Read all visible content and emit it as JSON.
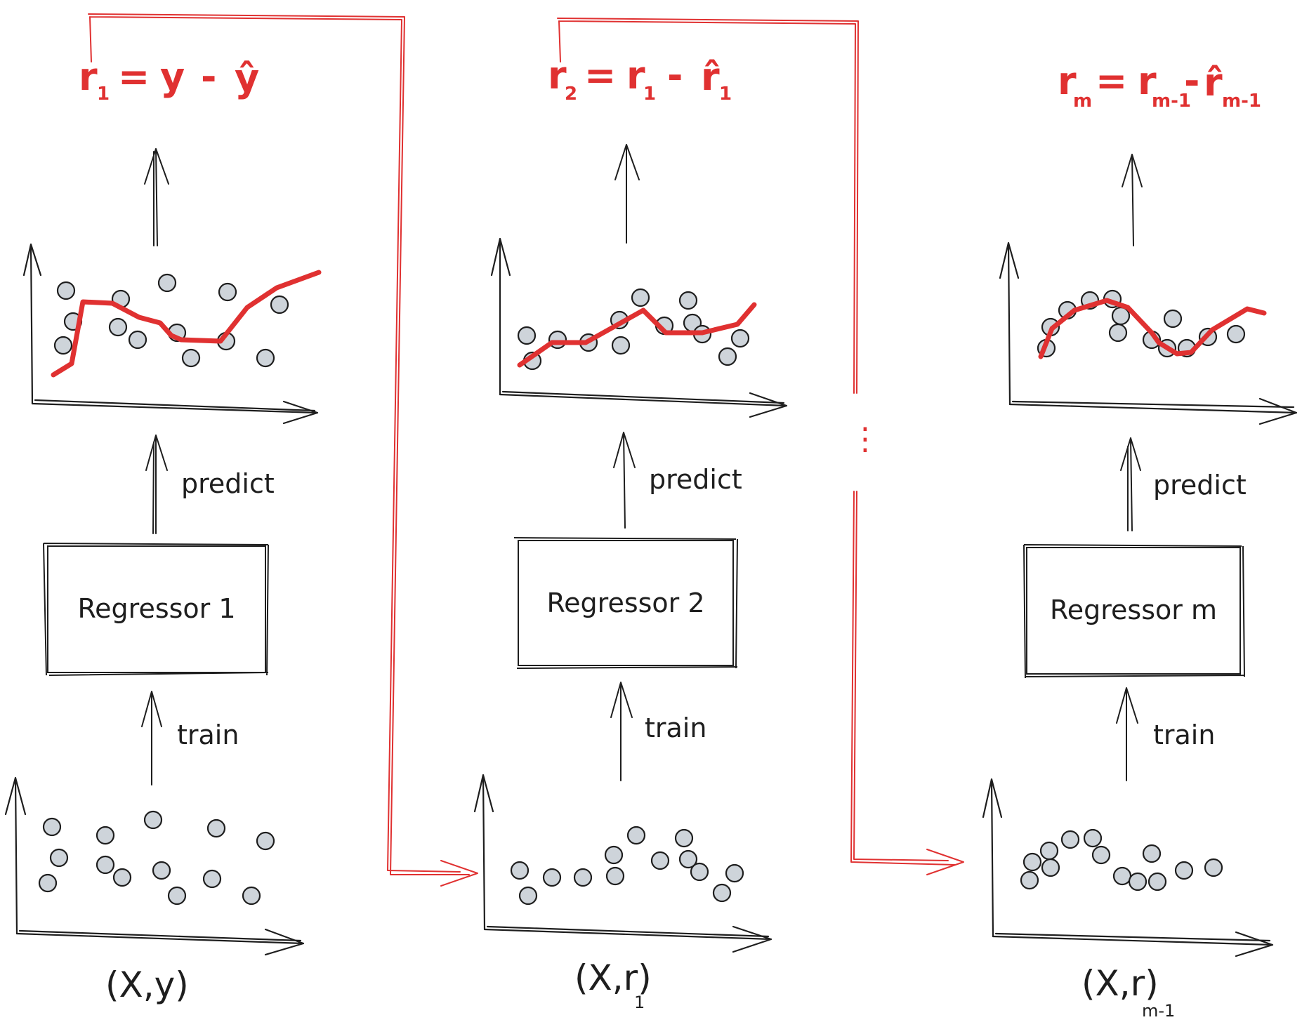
{
  "columns": [
    {
      "formula": {
        "lhs": "r",
        "lhs_sub": "1",
        "rhs": "= y - ŷ",
        "rhs_parts": [
          "y",
          "ŷ"
        ]
      },
      "predict_label": "predict",
      "train_label": "train",
      "box_label": "Regressor 1",
      "caption": {
        "main": "(X,y)",
        "sub": ""
      }
    },
    {
      "formula": {
        "lhs": "r",
        "lhs_sub": "2",
        "rhs": "r",
        "rhs_sub": "1",
        "hat": "r̂",
        "hat_sub": "1"
      },
      "predict_label": "predict",
      "train_label": "train",
      "box_label": "Regressor 2",
      "caption": {
        "main": "(X,r)",
        "sub": "1"
      }
    },
    {
      "formula": {
        "lhs": "r",
        "lhs_sub": "m",
        "rhs": "r",
        "rhs_sub": "m-1",
        "hat": "r̂",
        "hat_sub": "m-1"
      },
      "predict_label": "predict",
      "train_label": "train",
      "box_label": "Regressor m",
      "caption": {
        "main": "(X,r)",
        "sub": "m-1"
      }
    }
  ],
  "ellipsis": "⋮",
  "colors": {
    "accent": "#e03131",
    "ink": "#1e1e1e",
    "point_fill": "#ced4da"
  },
  "icons": {
    "arrow": "arrow-up-icon",
    "red_arrow": "arrow-right-icon"
  }
}
